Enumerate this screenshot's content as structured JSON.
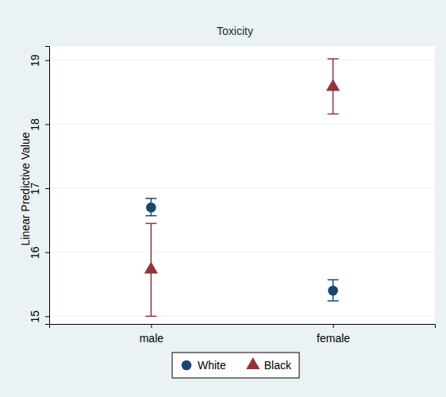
{
  "chart_data": {
    "type": "scatter",
    "title": "Toxicity",
    "y_label": "Linear Predictive Value",
    "categories": [
      "male",
      "female"
    ],
    "series": [
      {
        "name": "White",
        "color": "#1a476f",
        "marker": "circle",
        "values": [
          16.7,
          15.4
        ],
        "ci_low": [
          16.57,
          15.24
        ],
        "ci_high": [
          16.84,
          15.57
        ]
      },
      {
        "name": "Black",
        "color": "#90353b",
        "marker": "triangle",
        "values": [
          15.73,
          18.58
        ],
        "ci_low": [
          15.0,
          18.16
        ],
        "ci_high": [
          16.45,
          19.02
        ]
      }
    ],
    "ylim": [
      14.88,
      19.22
    ],
    "yticks": [
      15,
      16,
      17,
      18,
      19
    ],
    "grid": true,
    "legend": "bottom"
  }
}
